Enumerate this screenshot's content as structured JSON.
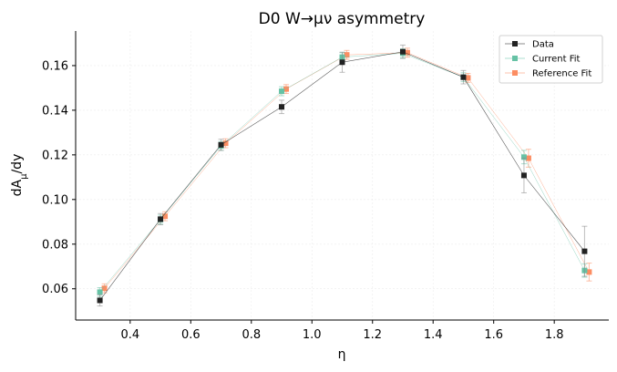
{
  "chart_data": {
    "type": "line",
    "title": "D0 W→μν asymmetry",
    "xlabel": "η",
    "ylabel_base": "dA",
    "ylabel_sub": "μ",
    "ylabel_tail": "/dy",
    "xlim": [
      0.22,
      1.98
    ],
    "ylim": [
      0.046,
      0.1755
    ],
    "xticks": [
      0.4,
      0.6,
      0.8,
      1.0,
      1.2,
      1.4,
      1.6,
      1.8
    ],
    "xtick_labels": [
      "0.4",
      "0.6",
      "0.8",
      "1.0",
      "1.2",
      "1.4",
      "1.6",
      "1.8"
    ],
    "yticks": [
      0.06,
      0.08,
      0.1,
      0.12,
      0.14,
      0.16
    ],
    "ytick_labels": [
      "0.06",
      "0.08",
      "0.10",
      "0.12",
      "0.14",
      "0.16"
    ],
    "grid": true,
    "legend_position": "top-right",
    "series": [
      {
        "name": "Data",
        "color": "#222222",
        "x": [
          0.3,
          0.5,
          0.7,
          0.9,
          1.1,
          1.3,
          1.5,
          1.7,
          1.9
        ],
        "y": [
          0.0548,
          0.0912,
          0.1245,
          0.1415,
          0.1615,
          0.1662,
          0.1548,
          0.1108,
          0.0768
        ],
        "err": [
          0.0025,
          0.0025,
          0.0025,
          0.003,
          0.0045,
          0.003,
          0.003,
          0.0078,
          0.0112
        ]
      },
      {
        "name": "Current Fit",
        "color": "#66c2a5",
        "x": [
          0.3,
          0.5,
          0.7,
          0.9,
          1.1,
          1.3,
          1.5,
          1.7,
          1.9
        ],
        "y": [
          0.0585,
          0.091,
          0.124,
          0.1485,
          0.1638,
          0.1655,
          0.1548,
          0.119,
          0.0682
        ],
        "err": [
          0.002,
          0.002,
          0.002,
          0.002,
          0.002,
          0.002,
          0.002,
          0.003,
          0.003
        ]
      },
      {
        "name": "Reference Fit",
        "color": "#fc8d62",
        "x": [
          0.315,
          0.515,
          0.715,
          0.915,
          1.115,
          1.315,
          1.515,
          1.715,
          1.915
        ],
        "y": [
          0.0602,
          0.0925,
          0.1252,
          0.1495,
          0.1648,
          0.1658,
          0.1545,
          0.1185,
          0.0675
        ],
        "err": [
          0.002,
          0.002,
          0.002,
          0.002,
          0.002,
          0.002,
          0.002,
          0.004,
          0.004
        ]
      }
    ]
  }
}
